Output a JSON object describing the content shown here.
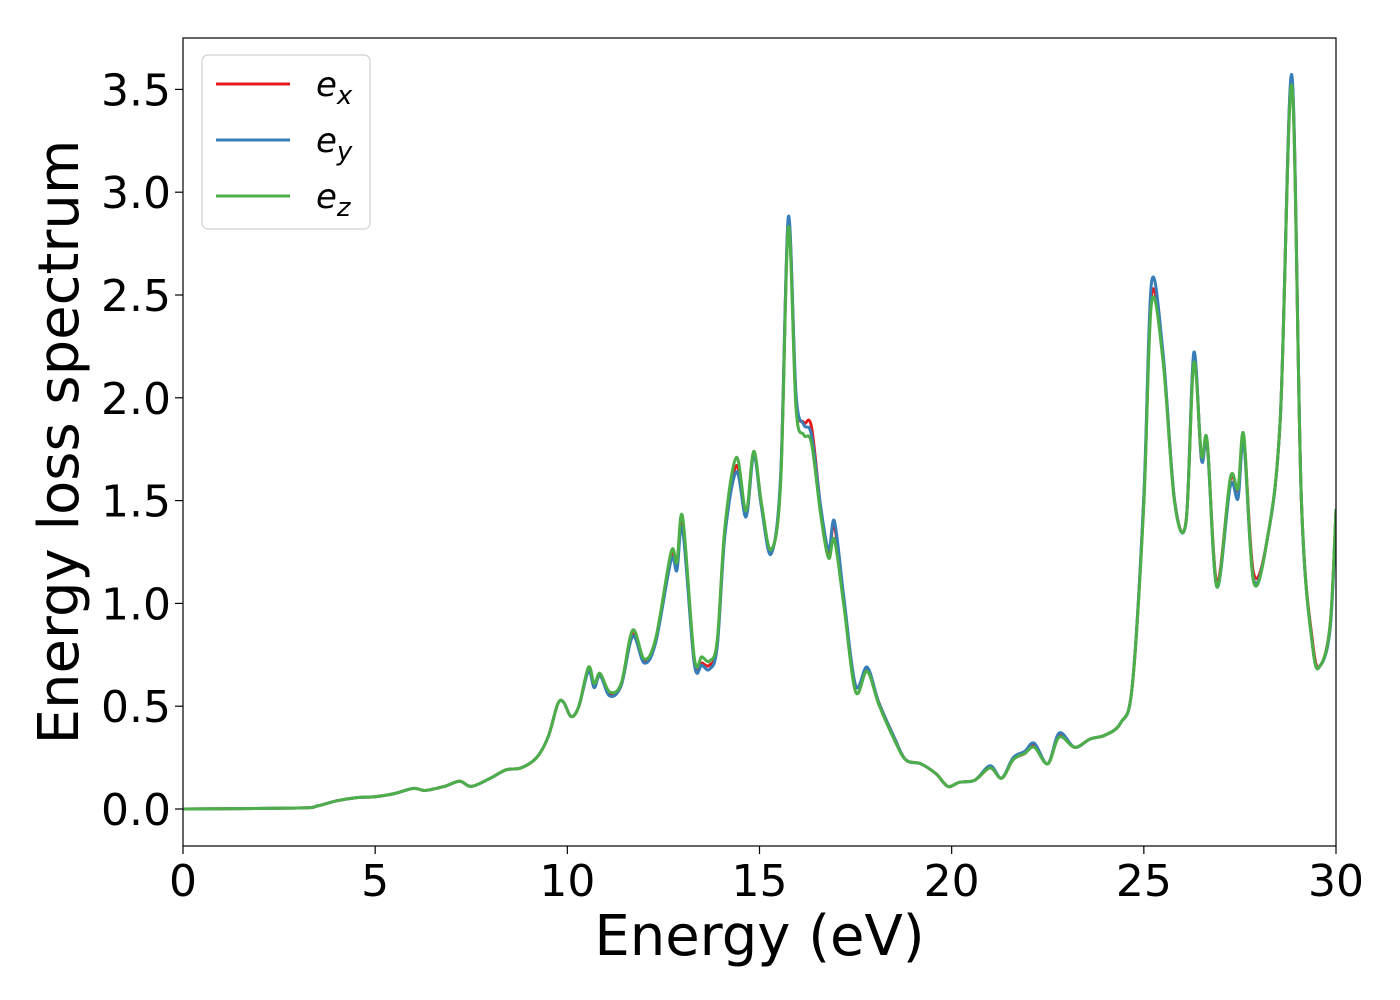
{
  "chart_data": {
    "type": "line",
    "xlabel": "Energy (eV)",
    "ylabel": "Energy loss spectrum",
    "xlim": [
      0,
      30
    ],
    "ylim": [
      -0.18,
      3.75
    ],
    "xticks": [
      0,
      5,
      10,
      15,
      20,
      25,
      30
    ],
    "xtick_labels": [
      "0",
      "5",
      "10",
      "15",
      "20",
      "25",
      "30"
    ],
    "yticks": [
      0.0,
      0.5,
      1.0,
      1.5,
      2.0,
      2.5,
      3.0,
      3.5
    ],
    "ytick_labels": [
      "0.0",
      "0.5",
      "1.0",
      "1.5",
      "2.0",
      "2.5",
      "3.0",
      "3.5"
    ],
    "grid": false,
    "legend_position": "top-left",
    "series": [
      {
        "name": "e",
        "subscript": "x",
        "color": "#e41a1c",
        "points": [
          [
            0,
            0
          ],
          [
            3,
            0.005
          ],
          [
            3.5,
            0.015
          ],
          [
            4,
            0.04
          ],
          [
            4.5,
            0.055
          ],
          [
            5,
            0.06
          ],
          [
            5.5,
            0.075
          ],
          [
            6,
            0.1
          ],
          [
            6.3,
            0.09
          ],
          [
            6.8,
            0.11
          ],
          [
            7.2,
            0.135
          ],
          [
            7.5,
            0.11
          ],
          [
            8,
            0.15
          ],
          [
            8.4,
            0.19
          ],
          [
            8.8,
            0.2
          ],
          [
            9.2,
            0.25
          ],
          [
            9.5,
            0.35
          ],
          [
            9.75,
            0.51
          ],
          [
            9.9,
            0.52
          ],
          [
            10.1,
            0.45
          ],
          [
            10.3,
            0.5
          ],
          [
            10.55,
            0.68
          ],
          [
            10.7,
            0.6
          ],
          [
            10.85,
            0.65
          ],
          [
            11.1,
            0.56
          ],
          [
            11.4,
            0.6
          ],
          [
            11.7,
            0.85
          ],
          [
            12,
            0.72
          ],
          [
            12.3,
            0.82
          ],
          [
            12.7,
            1.23
          ],
          [
            12.85,
            1.18
          ],
          [
            13,
            1.4
          ],
          [
            13.3,
            0.72
          ],
          [
            13.5,
            0.71
          ],
          [
            13.7,
            0.7
          ],
          [
            13.9,
            0.8
          ],
          [
            14.1,
            1.35
          ],
          [
            14.4,
            1.67
          ],
          [
            14.65,
            1.43
          ],
          [
            14.85,
            1.73
          ],
          [
            15.05,
            1.48
          ],
          [
            15.3,
            1.25
          ],
          [
            15.55,
            1.6
          ],
          [
            15.75,
            2.86
          ],
          [
            15.95,
            2.0
          ],
          [
            16.15,
            1.88
          ],
          [
            16.35,
            1.86
          ],
          [
            16.6,
            1.45
          ],
          [
            16.8,
            1.25
          ],
          [
            16.95,
            1.38
          ],
          [
            17.2,
            1.0
          ],
          [
            17.5,
            0.6
          ],
          [
            17.8,
            0.68
          ],
          [
            18.1,
            0.52
          ],
          [
            18.5,
            0.35
          ],
          [
            18.8,
            0.24
          ],
          [
            19.2,
            0.22
          ],
          [
            19.6,
            0.17
          ],
          [
            19.9,
            0.11
          ],
          [
            20.2,
            0.13
          ],
          [
            20.6,
            0.14
          ],
          [
            21,
            0.2
          ],
          [
            21.3,
            0.15
          ],
          [
            21.6,
            0.24
          ],
          [
            21.9,
            0.27
          ],
          [
            22.15,
            0.31
          ],
          [
            22.5,
            0.22
          ],
          [
            22.8,
            0.36
          ],
          [
            23.2,
            0.3
          ],
          [
            23.6,
            0.34
          ],
          [
            24,
            0.36
          ],
          [
            24.4,
            0.42
          ],
          [
            24.7,
            0.6
          ],
          [
            25,
            1.5
          ],
          [
            25.2,
            2.5
          ],
          [
            25.5,
            2.2
          ],
          [
            25.8,
            1.5
          ],
          [
            26.1,
            1.4
          ],
          [
            26.3,
            2.2
          ],
          [
            26.5,
            1.7
          ],
          [
            26.65,
            1.78
          ],
          [
            26.9,
            1.1
          ],
          [
            27.25,
            1.6
          ],
          [
            27.45,
            1.55
          ],
          [
            27.6,
            1.8
          ],
          [
            27.85,
            1.15
          ],
          [
            28.2,
            1.3
          ],
          [
            28.55,
            1.9
          ],
          [
            28.85,
            3.55
          ],
          [
            29.1,
            1.5
          ],
          [
            29.4,
            0.8
          ],
          [
            29.6,
            0.7
          ],
          [
            29.85,
            0.9
          ],
          [
            30,
            1.45
          ]
        ]
      },
      {
        "name": "e",
        "subscript": "y",
        "color": "#377eb8",
        "points": [
          [
            0,
            0
          ],
          [
            3,
            0.005
          ],
          [
            3.5,
            0.015
          ],
          [
            4,
            0.04
          ],
          [
            4.5,
            0.055
          ],
          [
            5,
            0.06
          ],
          [
            5.5,
            0.075
          ],
          [
            6,
            0.1
          ],
          [
            6.3,
            0.09
          ],
          [
            6.8,
            0.11
          ],
          [
            7.2,
            0.135
          ],
          [
            7.5,
            0.11
          ],
          [
            8,
            0.15
          ],
          [
            8.4,
            0.19
          ],
          [
            8.8,
            0.2
          ],
          [
            9.2,
            0.25
          ],
          [
            9.5,
            0.35
          ],
          [
            9.75,
            0.51
          ],
          [
            9.9,
            0.52
          ],
          [
            10.1,
            0.45
          ],
          [
            10.3,
            0.5
          ],
          [
            10.55,
            0.67
          ],
          [
            10.7,
            0.59
          ],
          [
            10.85,
            0.65
          ],
          [
            11.1,
            0.55
          ],
          [
            11.4,
            0.6
          ],
          [
            11.7,
            0.84
          ],
          [
            12,
            0.71
          ],
          [
            12.3,
            0.81
          ],
          [
            12.7,
            1.21
          ],
          [
            12.85,
            1.16
          ],
          [
            13,
            1.36
          ],
          [
            13.3,
            0.71
          ],
          [
            13.5,
            0.7
          ],
          [
            13.7,
            0.68
          ],
          [
            13.9,
            0.79
          ],
          [
            14.1,
            1.33
          ],
          [
            14.4,
            1.64
          ],
          [
            14.65,
            1.42
          ],
          [
            14.85,
            1.72
          ],
          [
            15.05,
            1.47
          ],
          [
            15.3,
            1.24
          ],
          [
            15.55,
            1.62
          ],
          [
            15.75,
            2.88
          ],
          [
            15.95,
            2.02
          ],
          [
            16.15,
            1.87
          ],
          [
            16.35,
            1.82
          ],
          [
            16.6,
            1.46
          ],
          [
            16.8,
            1.26
          ],
          [
            16.95,
            1.4
          ],
          [
            17.2,
            1.02
          ],
          [
            17.5,
            0.6
          ],
          [
            17.8,
            0.69
          ],
          [
            18.1,
            0.52
          ],
          [
            18.5,
            0.35
          ],
          [
            18.8,
            0.24
          ],
          [
            19.2,
            0.22
          ],
          [
            19.6,
            0.17
          ],
          [
            19.9,
            0.11
          ],
          [
            20.2,
            0.13
          ],
          [
            20.6,
            0.14
          ],
          [
            21,
            0.21
          ],
          [
            21.3,
            0.15
          ],
          [
            21.6,
            0.25
          ],
          [
            21.9,
            0.28
          ],
          [
            22.15,
            0.32
          ],
          [
            22.5,
            0.22
          ],
          [
            22.8,
            0.37
          ],
          [
            23.2,
            0.3
          ],
          [
            23.6,
            0.34
          ],
          [
            24,
            0.36
          ],
          [
            24.4,
            0.42
          ],
          [
            24.7,
            0.6
          ],
          [
            25,
            1.52
          ],
          [
            25.2,
            2.56
          ],
          [
            25.5,
            2.22
          ],
          [
            25.8,
            1.5
          ],
          [
            26.1,
            1.4
          ],
          [
            26.3,
            2.22
          ],
          [
            26.5,
            1.7
          ],
          [
            26.65,
            1.77
          ],
          [
            26.9,
            1.08
          ],
          [
            27.25,
            1.57
          ],
          [
            27.45,
            1.51
          ],
          [
            27.6,
            1.78
          ],
          [
            27.85,
            1.12
          ],
          [
            28.2,
            1.3
          ],
          [
            28.55,
            1.9
          ],
          [
            28.85,
            3.57
          ],
          [
            29.1,
            1.5
          ],
          [
            29.4,
            0.78
          ],
          [
            29.6,
            0.7
          ],
          [
            29.85,
            0.88
          ],
          [
            30,
            1.43
          ]
        ]
      },
      {
        "name": "e",
        "subscript": "z",
        "color": "#4daf4a",
        "points": [
          [
            0,
            0
          ],
          [
            3,
            0.005
          ],
          [
            3.5,
            0.015
          ],
          [
            4,
            0.04
          ],
          [
            4.5,
            0.055
          ],
          [
            5,
            0.06
          ],
          [
            5.5,
            0.075
          ],
          [
            6,
            0.1
          ],
          [
            6.3,
            0.09
          ],
          [
            6.8,
            0.11
          ],
          [
            7.2,
            0.135
          ],
          [
            7.5,
            0.11
          ],
          [
            8,
            0.15
          ],
          [
            8.4,
            0.19
          ],
          [
            8.8,
            0.2
          ],
          [
            9.2,
            0.25
          ],
          [
            9.5,
            0.35
          ],
          [
            9.75,
            0.51
          ],
          [
            9.9,
            0.52
          ],
          [
            10.1,
            0.45
          ],
          [
            10.3,
            0.5
          ],
          [
            10.55,
            0.69
          ],
          [
            10.7,
            0.61
          ],
          [
            10.85,
            0.66
          ],
          [
            11.1,
            0.57
          ],
          [
            11.4,
            0.61
          ],
          [
            11.7,
            0.87
          ],
          [
            12,
            0.73
          ],
          [
            12.3,
            0.83
          ],
          [
            12.7,
            1.25
          ],
          [
            12.85,
            1.2
          ],
          [
            13,
            1.42
          ],
          [
            13.3,
            0.74
          ],
          [
            13.5,
            0.74
          ],
          [
            13.7,
            0.72
          ],
          [
            13.9,
            0.82
          ],
          [
            14.1,
            1.37
          ],
          [
            14.4,
            1.71
          ],
          [
            14.65,
            1.45
          ],
          [
            14.85,
            1.74
          ],
          [
            15.05,
            1.49
          ],
          [
            15.3,
            1.26
          ],
          [
            15.55,
            1.58
          ],
          [
            15.75,
            2.83
          ],
          [
            15.95,
            1.95
          ],
          [
            16.15,
            1.82
          ],
          [
            16.35,
            1.78
          ],
          [
            16.6,
            1.42
          ],
          [
            16.8,
            1.22
          ],
          [
            16.95,
            1.31
          ],
          [
            17.2,
            0.98
          ],
          [
            17.5,
            0.57
          ],
          [
            17.8,
            0.67
          ],
          [
            18.1,
            0.51
          ],
          [
            18.5,
            0.34
          ],
          [
            18.8,
            0.24
          ],
          [
            19.2,
            0.22
          ],
          [
            19.6,
            0.17
          ],
          [
            19.9,
            0.11
          ],
          [
            20.2,
            0.13
          ],
          [
            20.6,
            0.14
          ],
          [
            21,
            0.2
          ],
          [
            21.3,
            0.15
          ],
          [
            21.6,
            0.24
          ],
          [
            21.9,
            0.27
          ],
          [
            22.15,
            0.3
          ],
          [
            22.5,
            0.22
          ],
          [
            22.8,
            0.35
          ],
          [
            23.2,
            0.3
          ],
          [
            23.6,
            0.34
          ],
          [
            24,
            0.36
          ],
          [
            24.4,
            0.42
          ],
          [
            24.7,
            0.6
          ],
          [
            25,
            1.48
          ],
          [
            25.2,
            2.46
          ],
          [
            25.5,
            2.18
          ],
          [
            25.8,
            1.49
          ],
          [
            26.1,
            1.4
          ],
          [
            26.3,
            2.17
          ],
          [
            26.5,
            1.72
          ],
          [
            26.65,
            1.79
          ],
          [
            26.9,
            1.08
          ],
          [
            27.25,
            1.61
          ],
          [
            27.45,
            1.56
          ],
          [
            27.6,
            1.82
          ],
          [
            27.85,
            1.11
          ],
          [
            28.2,
            1.3
          ],
          [
            28.55,
            1.9
          ],
          [
            28.85,
            3.52
          ],
          [
            29.1,
            1.5
          ],
          [
            29.4,
            0.78
          ],
          [
            29.6,
            0.7
          ],
          [
            29.85,
            0.9
          ],
          [
            30,
            1.46
          ]
        ]
      }
    ]
  }
}
